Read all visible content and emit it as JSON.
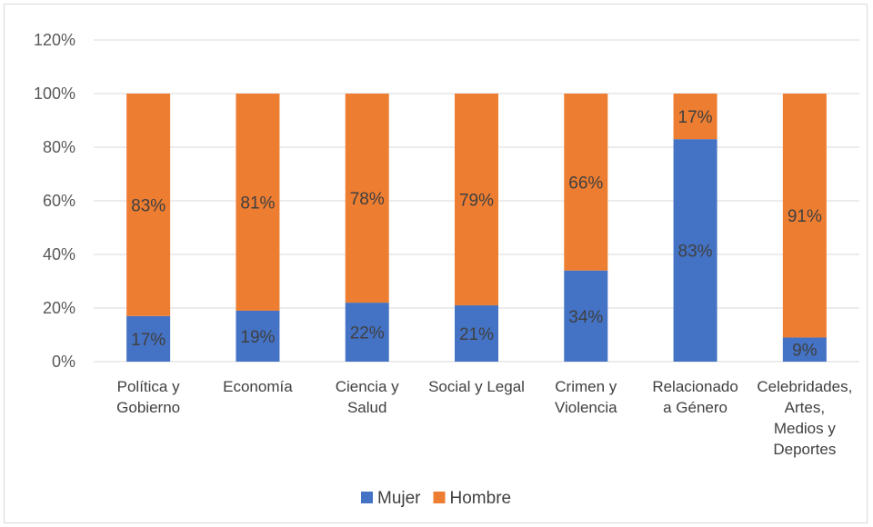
{
  "chart_data": {
    "type": "bar",
    "stacked": true,
    "categories": [
      [
        "Política y",
        "Gobierno"
      ],
      [
        "Economía"
      ],
      [
        "Ciencia y",
        "Salud"
      ],
      [
        "Social y Legal"
      ],
      [
        "Crimen y",
        "Violencia"
      ],
      [
        "Relacionado",
        "a Género"
      ],
      [
        "Celebridades,",
        "Artes,",
        "Medios y",
        "Deportes"
      ]
    ],
    "series": [
      {
        "name": "Mujer",
        "color": "#4472c4",
        "values": [
          17,
          19,
          22,
          21,
          34,
          83,
          9
        ],
        "labels": [
          "17%",
          "19%",
          "22%",
          "21%",
          "34%",
          "83%",
          "9%"
        ]
      },
      {
        "name": "Hombre",
        "color": "#ed7d31",
        "values": [
          83,
          81,
          78,
          79,
          66,
          17,
          91
        ],
        "labels": [
          "83%",
          "81%",
          "78%",
          "79%",
          "66%",
          "17%",
          "91%"
        ]
      }
    ],
    "yticks": [
      "0%",
      "20%",
      "40%",
      "60%",
      "80%",
      "100%",
      "120%"
    ],
    "ylim": [
      0,
      120
    ],
    "grid": true,
    "legend_position": "bottom",
    "gridline_color": "#d9d9d9"
  }
}
